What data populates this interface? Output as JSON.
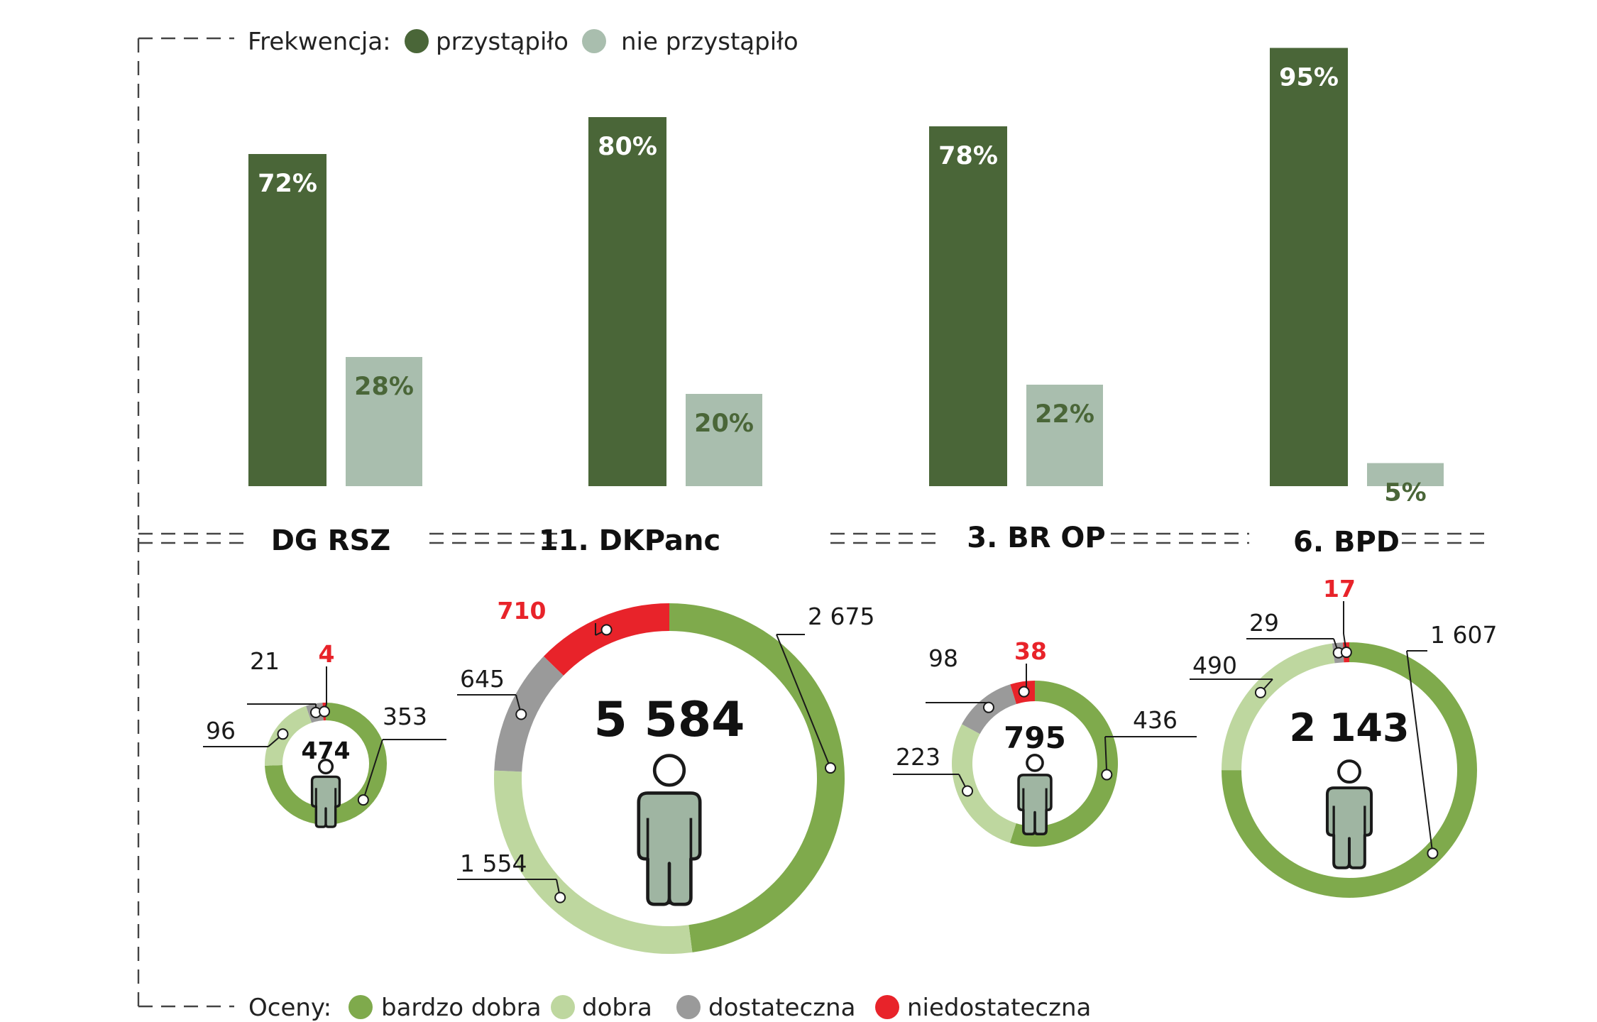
{
  "colors": {
    "turnout_took": "#4a6638",
    "turnout_not": "#a9beae",
    "grade_very_good": "#7faa4c",
    "grade_good": "#bed79f",
    "grade_sufficient": "#9a9a9a",
    "grade_insufficient": "#e8232a",
    "person_fill": "#9fb5a2",
    "person_stroke": "#1a1a1a",
    "dash": "#444444"
  },
  "legend_turnout": {
    "label": "Frekwencja:",
    "items": [
      {
        "label": "przystąpiło",
        "color": "#4a6638"
      },
      {
        "label": "nie przystąpiło",
        "color": "#a9beae"
      }
    ]
  },
  "legend_grades": {
    "label": "Oceny:",
    "items": [
      {
        "label": "bardzo dobra",
        "color": "#7faa4c"
      },
      {
        "label": "dobra",
        "color": "#bed79f"
      },
      {
        "label": "dostateczna",
        "color": "#9a9a9a"
      },
      {
        "label": "niedostateczna",
        "color": "#e8232a"
      }
    ]
  },
  "icons": [
    "person-icon"
  ],
  "chart_data": [
    {
      "type": "bar",
      "categories": [
        "DG RSZ",
        "11. DKPanc",
        "3. BR OP",
        "6. BPD"
      ],
      "series": [
        {
          "name": "przystąpiło",
          "values": [
            72,
            80,
            78,
            95
          ],
          "labels": [
            "72%",
            "80%",
            "78%",
            "95%"
          ]
        },
        {
          "name": "nie przystąpiło",
          "values": [
            28,
            20,
            22,
            5
          ],
          "labels": [
            "28%",
            "20%",
            "22%",
            "5%"
          ]
        }
      ],
      "ylim": [
        0,
        100
      ],
      "grid": false,
      "legend_position": "top"
    },
    {
      "type": "pie",
      "variant": "donut",
      "categories": [
        "bardzo dobra",
        "dobra",
        "dostateczna",
        "niedostateczna"
      ],
      "units": [
        {
          "name": "DG RSZ",
          "total": 474,
          "total_label": "474",
          "values": [
            353,
            96,
            21,
            4
          ],
          "value_labels": [
            "353",
            "96",
            "21",
            "4"
          ]
        },
        {
          "name": "11. DKPanc",
          "total": 5584,
          "total_label": "5 584",
          "values": [
            2675,
            1554,
            645,
            710
          ],
          "value_labels": [
            "2 675",
            "1 554",
            "645",
            "710"
          ]
        },
        {
          "name": "3. BR OP",
          "total": 795,
          "total_label": "795",
          "values": [
            436,
            223,
            98,
            38
          ],
          "value_labels": [
            "436",
            "223",
            "98",
            "38"
          ]
        },
        {
          "name": "6. BPD",
          "total": 2143,
          "total_label": "2 143",
          "values": [
            1607,
            490,
            29,
            17
          ],
          "value_labels": [
            "1 607",
            "490",
            "29",
            "17"
          ]
        }
      ],
      "legend_position": "bottom"
    }
  ]
}
